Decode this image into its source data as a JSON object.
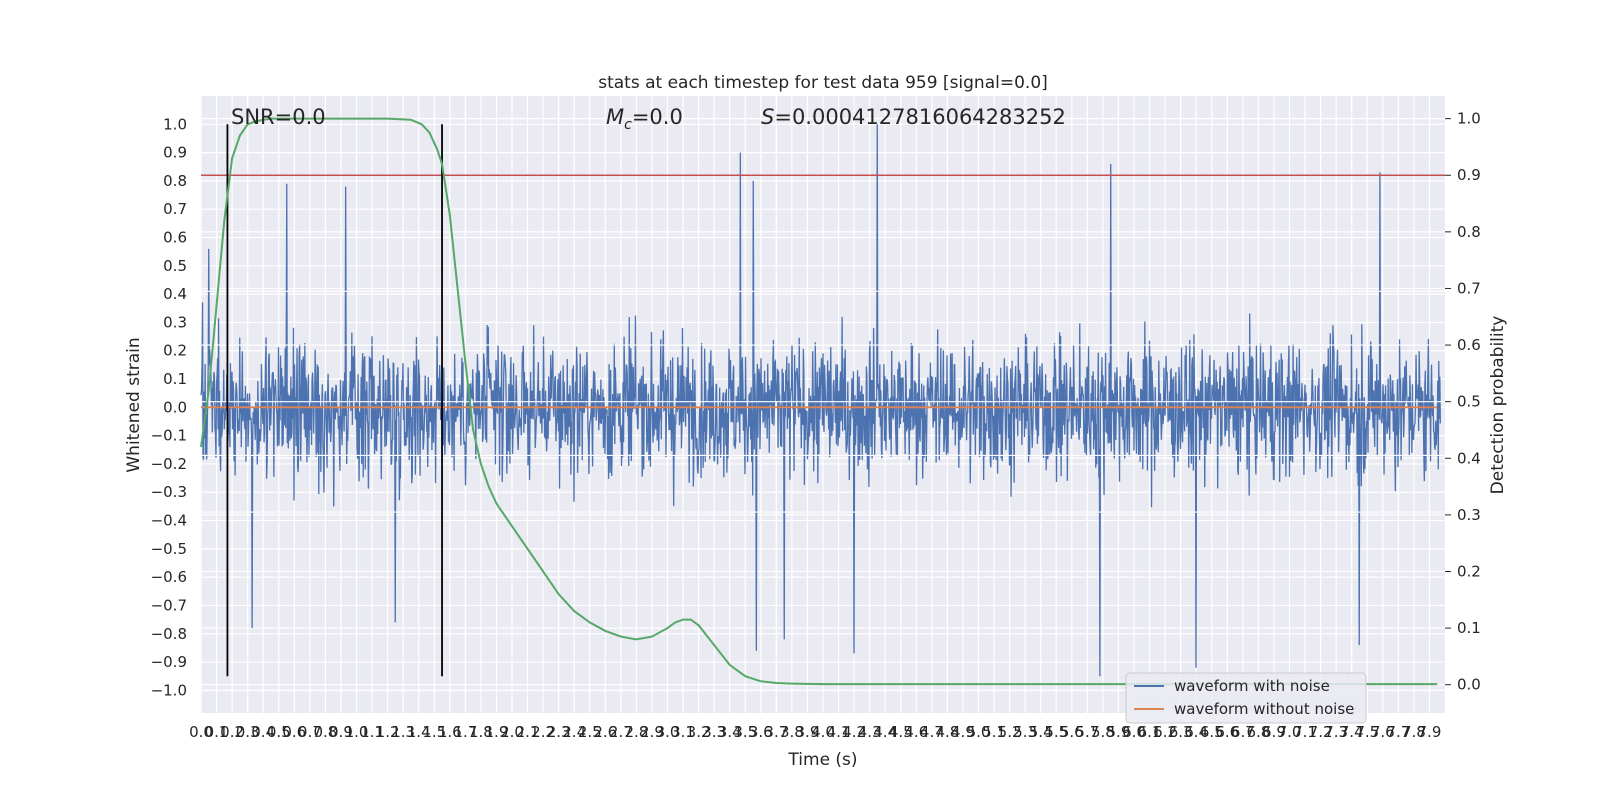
{
  "chart_data": {
    "type": "line",
    "title": "stats at each timestep for test data 959 [signal=0.0]",
    "xlabel": "Time (s)",
    "ylabel_left": "Whitened strain",
    "ylabel_right": "Detection probability",
    "xlim": [
      0.0,
      8.0
    ],
    "ylim_left": [
      -1.08,
      1.1
    ],
    "ylim_right": [
      -0.05,
      1.04
    ],
    "x_ticks": [
      "0.0",
      "0.1",
      "0.2",
      "0.3",
      "0.4",
      "0.5",
      "0.6",
      "0.7",
      "0.8",
      "0.9",
      "1.0",
      "1.1",
      "1.2",
      "1.3",
      "1.4",
      "1.5",
      "1.6",
      "1.7",
      "1.8",
      "1.9",
      "2.0",
      "2.1",
      "2.2",
      "2.3",
      "2.4",
      "2.5",
      "2.6",
      "2.7",
      "2.8",
      "2.9",
      "3.0",
      "3.1",
      "3.2",
      "3.3",
      "3.4",
      "3.5",
      "3.6",
      "3.7",
      "3.8",
      "3.9",
      "4.0",
      "4.1",
      "4.2",
      "4.3",
      "4.4",
      "4.5",
      "4.6",
      "4.7",
      "4.8",
      "4.9",
      "5.0",
      "5.1",
      "5.2",
      "5.3",
      "5.4",
      "5.5",
      "5.6",
      "5.7",
      "5.8",
      "5.9",
      "6.0",
      "6.1",
      "6.2",
      "6.3",
      "6.4",
      "6.5",
      "6.6",
      "6.7",
      "6.8",
      "6.9",
      "7.0",
      "7.1",
      "7.2",
      "7.3",
      "7.4",
      "7.5",
      "7.6",
      "7.7",
      "7.8",
      "7.9"
    ],
    "y_ticks_left": [
      "1.0",
      "0.9",
      "0.8",
      "0.7",
      "0.6",
      "0.5",
      "0.4",
      "0.3",
      "0.2",
      "0.1",
      "0.0",
      "-0.1",
      "-0.2",
      "-0.3",
      "-0.4",
      "-0.5",
      "-0.6",
      "-0.7",
      "-0.8",
      "-0.9",
      "-1.0"
    ],
    "y_ticks_right": [
      "1.0",
      "0.9",
      "0.8",
      "0.7",
      "0.6",
      "0.5",
      "0.4",
      "0.3",
      "0.2",
      "0.1",
      "0.0"
    ],
    "annotations": {
      "snr": "SNR=0.0",
      "mc_symbol": "M",
      "mc_subscript": "c",
      "mc_value": "=0.0",
      "s_symbol": "S",
      "s_value": "=0.00041278160642832​52"
    },
    "legend": {
      "placement": "lower-right",
      "entries": [
        "waveform with noise",
        "waveform without noise"
      ]
    },
    "colors": {
      "noise": "#4c72b0",
      "clean": "#dd8452",
      "probability": "#55a868",
      "threshold": "#c44e52",
      "markers": "#000000",
      "plot_bg": "#eaeaf2",
      "grid": "#ffffff"
    },
    "threshold_probability": 0.9,
    "vertical_markers_s": [
      0.17,
      1.55
    ],
    "series": [
      {
        "name": "waveform with noise",
        "axis": "left",
        "description_range": [
          -1.0,
          1.0
        ],
        "peaks": [
          [
            0.05,
            0.56
          ],
          [
            0.55,
            0.79
          ],
          [
            0.93,
            0.78
          ],
          [
            3.47,
            0.9
          ],
          [
            3.55,
            0.8
          ],
          [
            4.35,
            1.0
          ],
          [
            5.85,
            0.86
          ],
          [
            7.58,
            0.83
          ]
        ],
        "troughs": [
          [
            0.33,
            -0.78
          ],
          [
            1.25,
            -0.76
          ],
          [
            3.57,
            -0.86
          ],
          [
            3.75,
            -0.82
          ],
          [
            4.2,
            -0.87
          ],
          [
            5.78,
            -0.95
          ],
          [
            6.4,
            -0.92
          ],
          [
            7.45,
            -0.84
          ]
        ]
      },
      {
        "name": "waveform without noise",
        "axis": "left",
        "x": [
          0.0,
          7.95
        ],
        "y": [
          0.0,
          0.0
        ]
      },
      {
        "name": "detection probability",
        "axis": "right",
        "x": [
          0.0,
          0.05,
          0.1,
          0.15,
          0.2,
          0.25,
          0.3,
          0.35,
          0.4,
          0.45,
          0.5,
          0.6,
          0.8,
          1.0,
          1.2,
          1.35,
          1.42,
          1.47,
          1.52,
          1.55,
          1.6,
          1.65,
          1.7,
          1.75,
          1.8,
          1.85,
          1.9,
          2.0,
          2.1,
          2.2,
          2.3,
          2.4,
          2.5,
          2.6,
          2.7,
          2.8,
          2.9,
          3.0,
          3.05,
          3.1,
          3.15,
          3.2,
          3.3,
          3.4,
          3.5,
          3.6,
          3.7,
          3.8,
          3.9,
          4.0,
          4.5,
          5.0,
          6.0,
          7.0,
          7.95
        ],
        "y": [
          0.42,
          0.52,
          0.67,
          0.82,
          0.93,
          0.97,
          0.99,
          0.995,
          0.998,
          1.0,
          1.0,
          1.0,
          1.0,
          1.0,
          1.0,
          0.998,
          0.99,
          0.975,
          0.945,
          0.92,
          0.83,
          0.7,
          0.57,
          0.45,
          0.39,
          0.35,
          0.32,
          0.28,
          0.24,
          0.2,
          0.16,
          0.13,
          0.11,
          0.095,
          0.085,
          0.08,
          0.085,
          0.1,
          0.11,
          0.115,
          0.115,
          0.105,
          0.07,
          0.035,
          0.015,
          0.006,
          0.003,
          0.002,
          0.0015,
          0.001,
          0.001,
          0.001,
          0.001,
          0.001,
          0.001
        ]
      }
    ]
  }
}
